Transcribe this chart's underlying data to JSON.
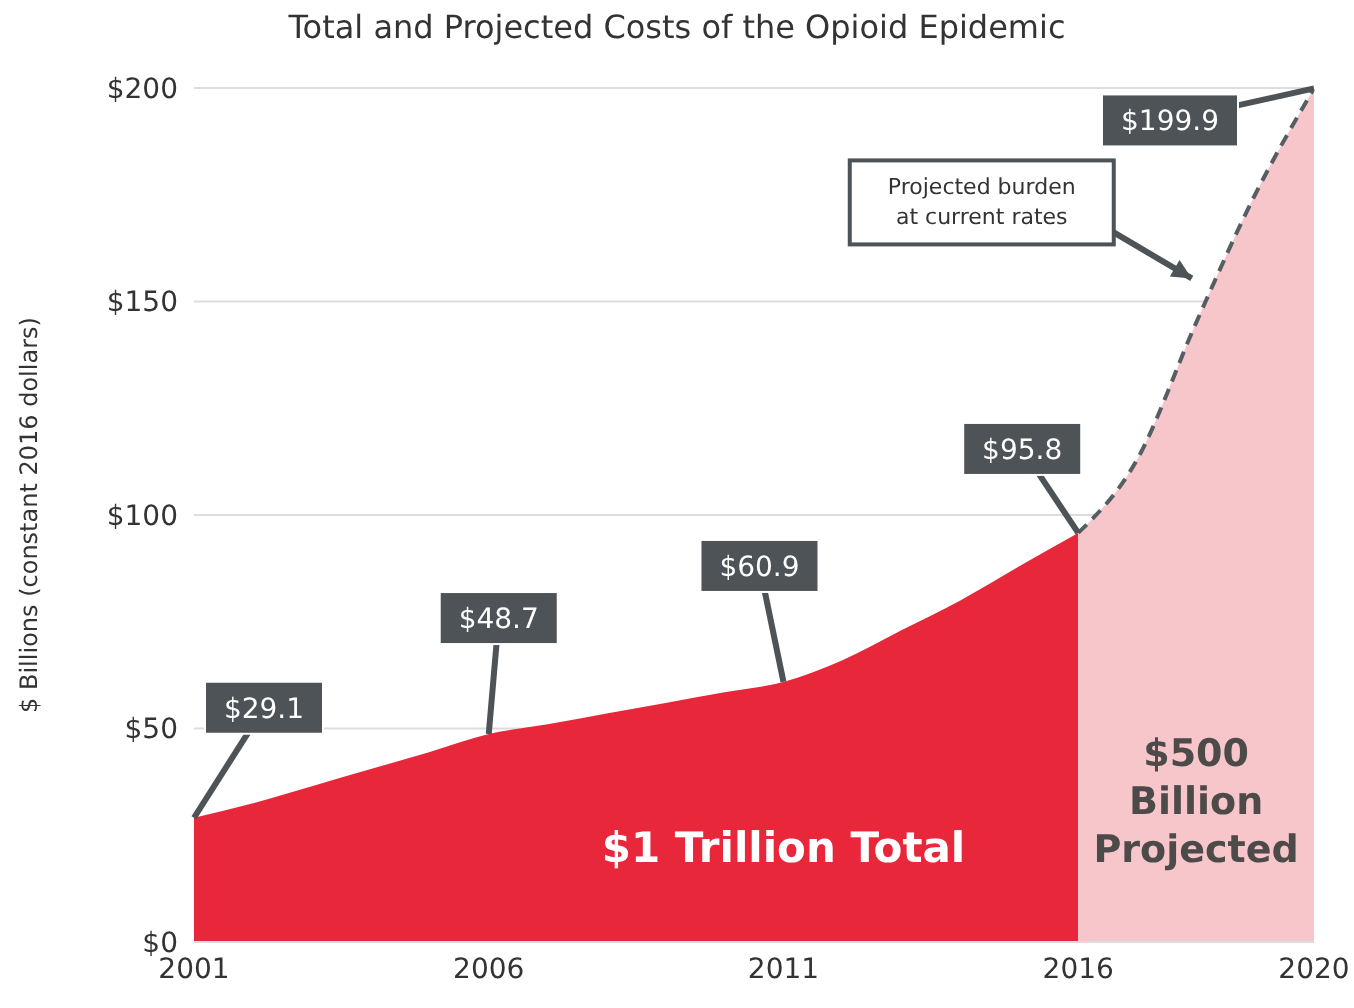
{
  "chart_data": {
    "type": "area",
    "title": "Total and Projected Costs of the Opioid Epidemic",
    "ylabel": "$ Billions (constant 2016 dollars)",
    "x": [
      2001,
      2002,
      2003,
      2004,
      2005,
      2006,
      2007,
      2008,
      2009,
      2010,
      2011,
      2012,
      2013,
      2014,
      2015,
      2016,
      2017,
      2018,
      2019,
      2020
    ],
    "series": [
      {
        "color": "#e8273a",
        "values": [
          29.1,
          32.5,
          36.5,
          40.5,
          44.5,
          48.7,
          51,
          53.5,
          56,
          58.5,
          60.9,
          66,
          73,
          80,
          88,
          95.8,
          null,
          null,
          null,
          null
        ],
        "value_labels": [
          "$29.1",
          null,
          null,
          null,
          null,
          "$48.7",
          null,
          null,
          null,
          null,
          "$60.9",
          null,
          null,
          null,
          null,
          "$95.8",
          null,
          null,
          null,
          null
        ]
      },
      {
        "color": "#f7c6cb",
        "line_style": "dashed",
        "values": [
          null,
          null,
          null,
          null,
          null,
          null,
          null,
          null,
          null,
          null,
          null,
          null,
          null,
          null,
          null,
          95.8,
          113,
          145,
          175,
          199.9
        ],
        "value_labels": [
          null,
          null,
          null,
          null,
          null,
          null,
          null,
          null,
          null,
          null,
          null,
          null,
          null,
          null,
          null,
          null,
          null,
          null,
          null,
          "$199.9"
        ]
      }
    ],
    "xlim": [
      2001,
      2020
    ],
    "xticks": [
      2001,
      2006,
      2011,
      2016,
      2020
    ],
    "ylim": [
      0,
      200
    ],
    "yticks": [
      {
        "value": 0,
        "label": "$0"
      },
      {
        "value": 50,
        "label": "$50"
      },
      {
        "value": 100,
        "label": "$100"
      },
      {
        "value": 150,
        "label": "$150"
      },
      {
        "value": 200,
        "label": "$200"
      }
    ],
    "grid": "y",
    "annotations": [
      "$1 Trillion Total",
      "$500 Billion Projected",
      "Projected burden at current rates"
    ]
  }
}
